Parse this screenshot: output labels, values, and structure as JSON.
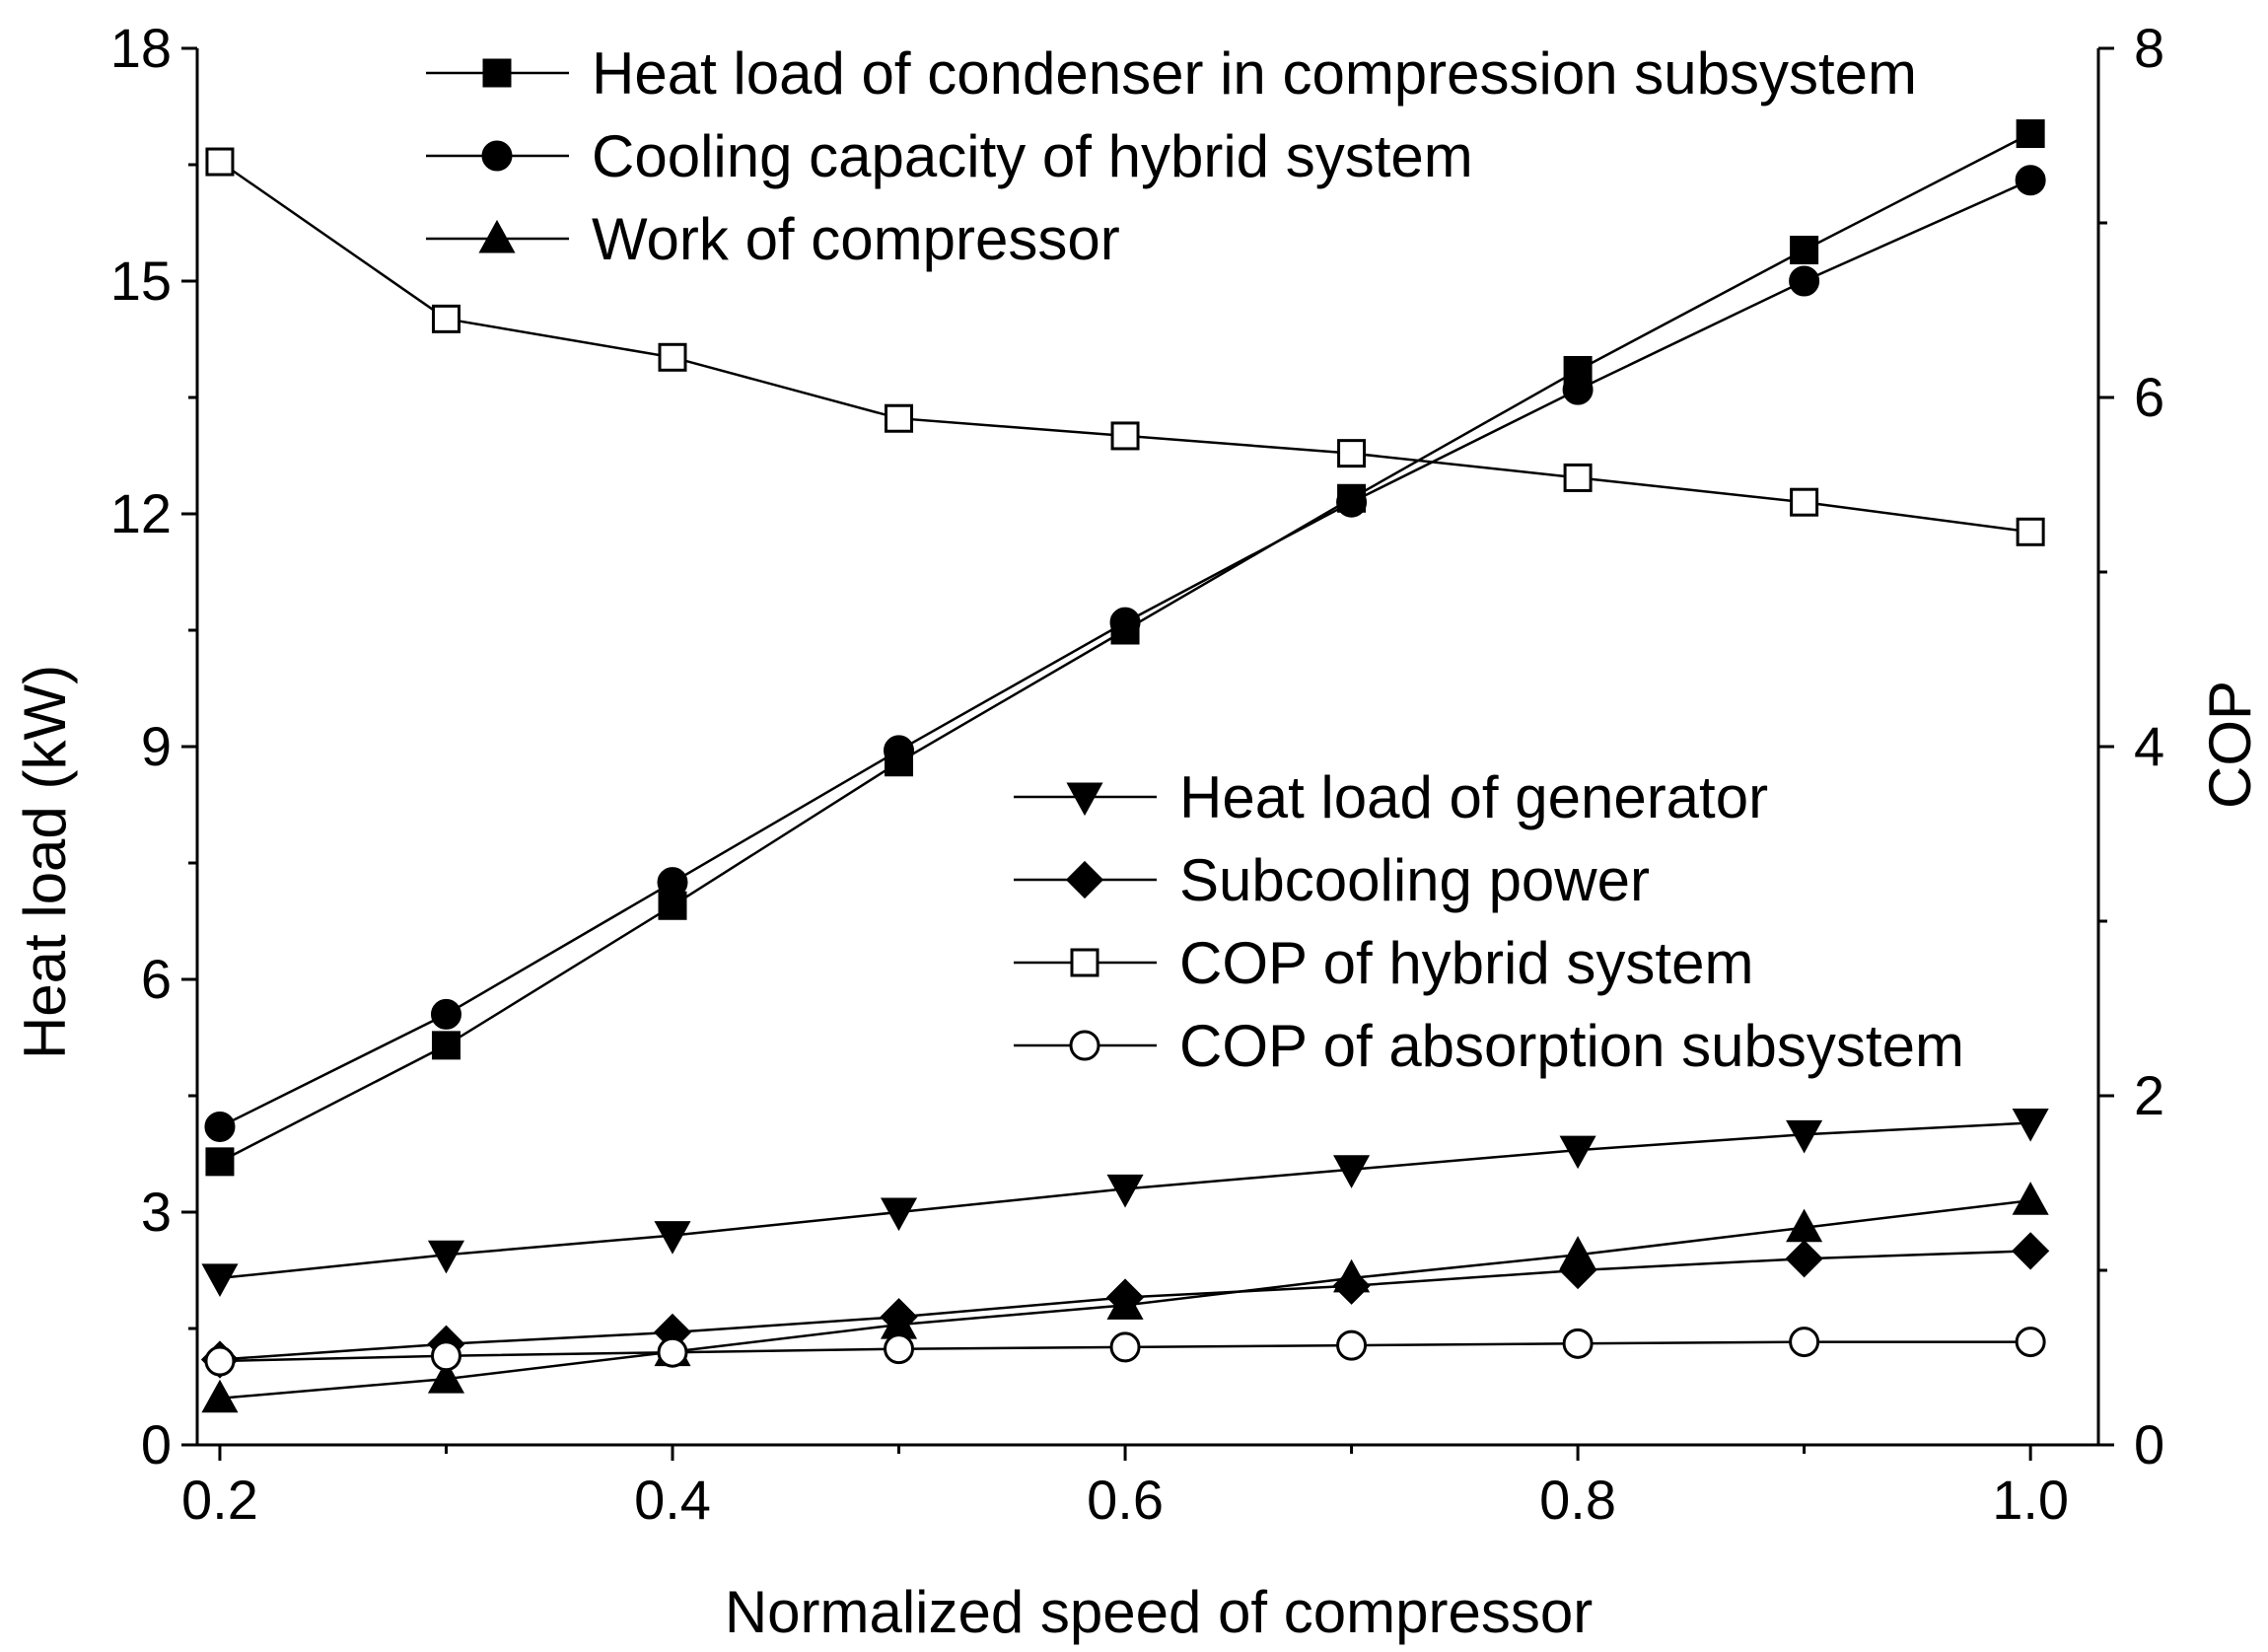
{
  "chart_data": {
    "type": "line",
    "title": "",
    "xlabel": "Normalized speed of compressor",
    "ylabel": "Heat load (kW)",
    "y2label": "COP",
    "xlim": [
      0.19,
      1.03
    ],
    "ylim": [
      0,
      18
    ],
    "y2lim": [
      0,
      8
    ],
    "x_ticks": [
      0.2,
      0.4,
      0.6,
      0.8,
      1.0
    ],
    "x_tick_labels": [
      "0.2",
      "0.4",
      "0.6",
      "0.8",
      "1.0"
    ],
    "y_ticks": [
      0,
      3,
      6,
      9,
      12,
      15,
      18
    ],
    "y_tick_labels": [
      "0",
      "3",
      "6",
      "9",
      "12",
      "15",
      "18"
    ],
    "y2_ticks": [
      0,
      2,
      4,
      6,
      8
    ],
    "y2_tick_labels": [
      "0",
      "2",
      "4",
      "6",
      "8"
    ],
    "grid": false,
    "x": [
      0.2,
      0.3,
      0.4,
      0.5,
      0.6,
      0.7,
      0.8,
      0.9,
      1.0
    ],
    "series": [
      {
        "name": "Heat load of condenser in compression subsystem",
        "axis": "left",
        "marker": "square-filled",
        "values": [
          3.65,
          5.15,
          6.95,
          8.8,
          10.5,
          12.2,
          13.85,
          15.4,
          16.9
        ]
      },
      {
        "name": "Cooling capacity of hybrid system",
        "axis": "left",
        "marker": "circle-filled",
        "values": [
          4.1,
          5.55,
          7.25,
          8.95,
          10.6,
          12.15,
          13.6,
          15.0,
          16.3
        ]
      },
      {
        "name": "Work of compressor",
        "axis": "left",
        "marker": "triangle-up-filled",
        "values": [
          0.6,
          0.85,
          1.2,
          1.55,
          1.8,
          2.15,
          2.45,
          2.8,
          3.15
        ]
      },
      {
        "name": "Heat load of generator",
        "axis": "left",
        "marker": "triangle-down-filled",
        "values": [
          2.15,
          2.45,
          2.7,
          3.0,
          3.3,
          3.55,
          3.8,
          4.0,
          4.15
        ]
      },
      {
        "name": "Subcooling power",
        "axis": "left",
        "marker": "diamond-filled",
        "values": [
          1.1,
          1.3,
          1.45,
          1.65,
          1.9,
          2.05,
          2.25,
          2.4,
          2.5
        ]
      },
      {
        "name": "COP of hybrid system",
        "axis": "right",
        "marker": "square-open",
        "values": [
          7.35,
          6.45,
          6.23,
          5.88,
          5.78,
          5.68,
          5.54,
          5.4,
          5.23
        ]
      },
      {
        "name": "COP of absorption subsystem",
        "axis": "right",
        "marker": "circle-open",
        "values": [
          0.48,
          0.51,
          0.53,
          0.55,
          0.56,
          0.57,
          0.58,
          0.59,
          0.59
        ]
      }
    ],
    "legend_groups": [
      {
        "placement": "top-left",
        "series": [
          0,
          1,
          2
        ]
      },
      {
        "placement": "center-right",
        "series": [
          3,
          4,
          5,
          6
        ]
      }
    ]
  }
}
